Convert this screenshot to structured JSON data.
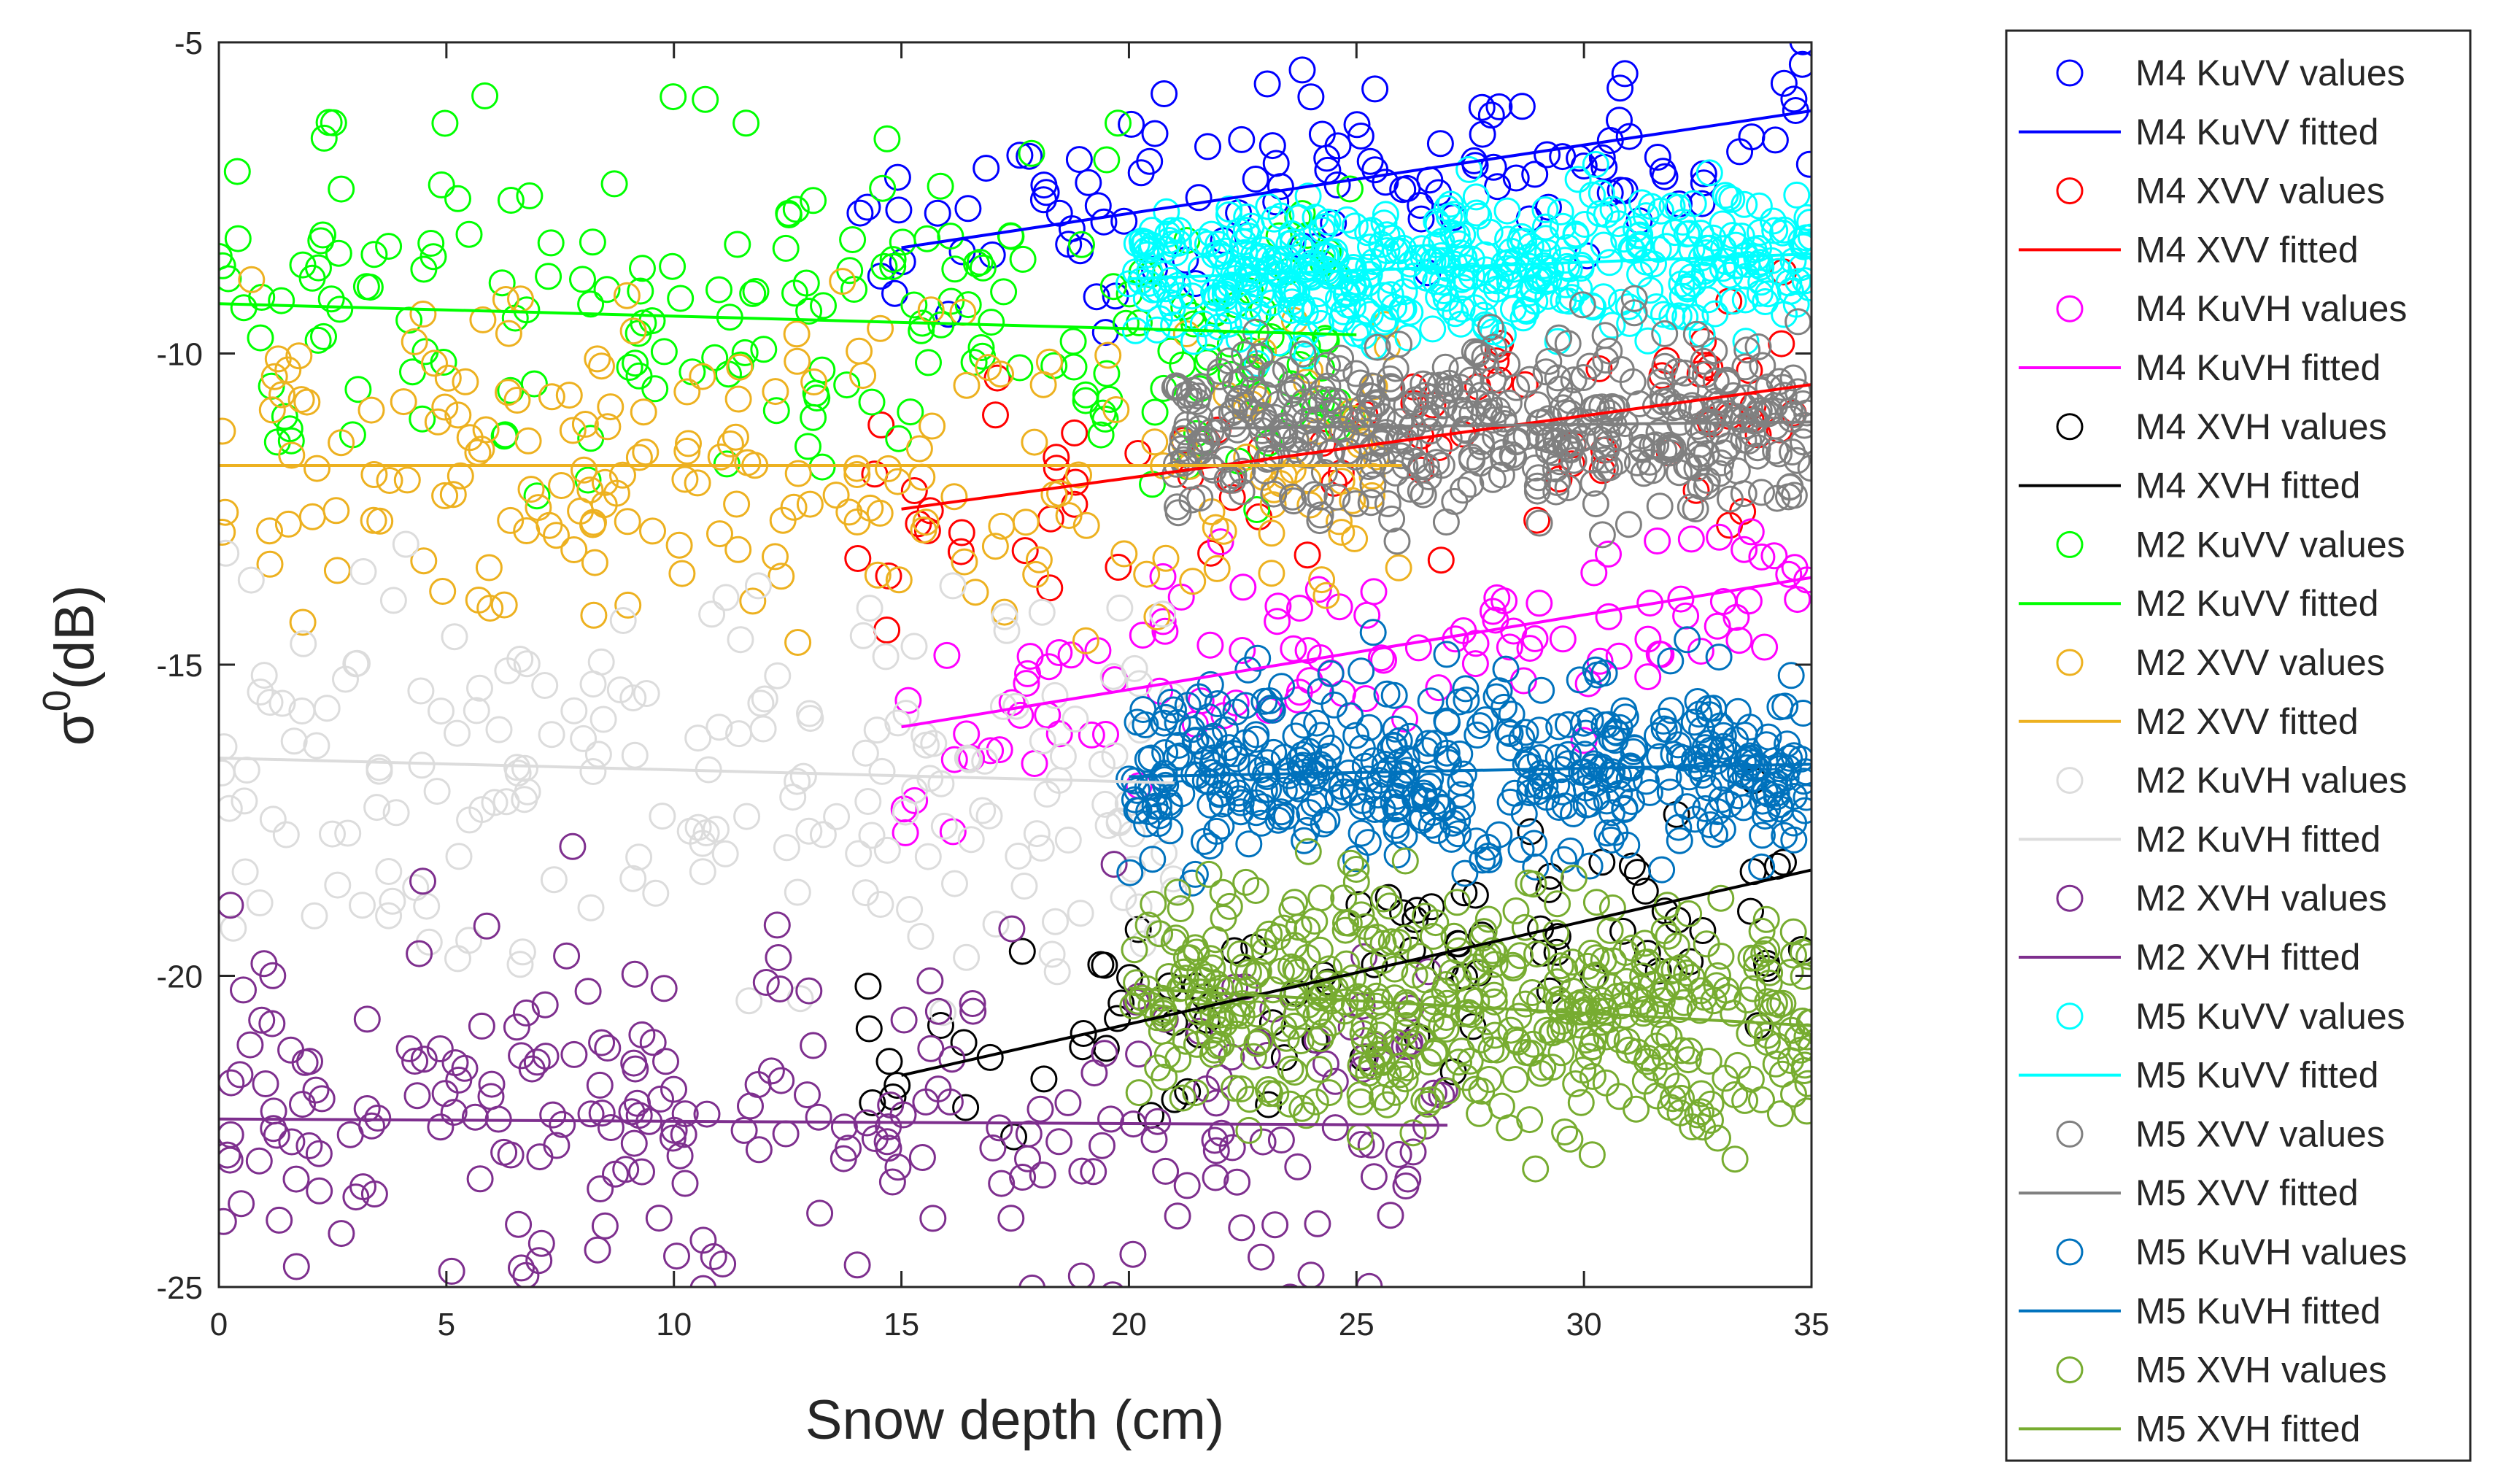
{
  "chart_data": {
    "type": "scatter",
    "title": "",
    "xlabel": "Snow depth (cm)",
    "ylabel_base": "σ",
    "ylabel_superscript": "0",
    "ylabel_unit": "(dB)",
    "xlim": [
      0,
      35
    ],
    "ylim": [
      -25,
      -5
    ],
    "xticks": [
      0,
      5,
      10,
      15,
      20,
      25,
      30,
      35
    ],
    "yticks": [
      -5,
      -10,
      -15,
      -20,
      -25
    ],
    "grid": false,
    "legend_position": "outside-right",
    "series": [
      {
        "name": "M4 KuVV",
        "color": "#0000ff",
        "x_range": [
          14,
          35
        ],
        "y_center": -7.4,
        "spread": 0.8,
        "count": 120,
        "fit": [
          [
            15,
            -8.3
          ],
          [
            35,
            -6.1
          ]
        ]
      },
      {
        "name": "M4 XVV",
        "color": "#ff0000",
        "x_range": [
          14,
          35
        ],
        "y_center": -11.5,
        "spread": 0.9,
        "count": 80,
        "fit": [
          [
            15,
            -12.5
          ],
          [
            35,
            -10.5
          ]
        ]
      },
      {
        "name": "M4 KuVH",
        "color": "#ff00ff",
        "x_range": [
          15,
          35
        ],
        "y_center": -15.0,
        "spread": 0.8,
        "count": 110,
        "fit": [
          [
            15,
            -16.0
          ],
          [
            35,
            -13.6
          ]
        ]
      },
      {
        "name": "M4 XVH",
        "color": "#000000",
        "x_range": [
          14,
          35
        ],
        "y_center": -20.5,
        "spread": 0.9,
        "count": 90,
        "fit": [
          [
            15,
            -21.6
          ],
          [
            35,
            -18.3
          ]
        ]
      },
      {
        "name": "M2 KuVV",
        "color": "#00ff00",
        "x_range": [
          0,
          25
        ],
        "y_center": -9.3,
        "spread": 1.4,
        "count": 220,
        "fit": [
          [
            0,
            -9.2
          ],
          [
            25,
            -9.7
          ]
        ]
      },
      {
        "name": "M2 XVV",
        "color": "#edb120",
        "x_range": [
          0,
          26
        ],
        "y_center": -11.8,
        "spread": 1.2,
        "count": 220,
        "fit": [
          [
            0,
            -11.8
          ],
          [
            26,
            -11.8
          ]
        ]
      },
      {
        "name": "M2 KuVH",
        "color": "#dcdcdc",
        "x_range": [
          0,
          21
        ],
        "y_center": -16.5,
        "spread": 1.8,
        "count": 200,
        "fit": [
          [
            0,
            -16.5
          ],
          [
            21,
            -16.9
          ]
        ]
      },
      {
        "name": "M2 XVH",
        "color": "#7e2f8e",
        "x_range": [
          0,
          27
        ],
        "y_center": -22.3,
        "spread": 1.5,
        "count": 260,
        "fit": [
          [
            0,
            -22.3
          ],
          [
            27,
            -22.4
          ]
        ]
      },
      {
        "name": "M5 KuVV",
        "color": "#00ffff",
        "x_range": [
          20,
          35
        ],
        "y_center": -8.6,
        "spread": 0.55,
        "count": 450,
        "fit": [
          [
            20,
            -8.8
          ],
          [
            35,
            -8.4
          ]
        ]
      },
      {
        "name": "M5 XVV",
        "color": "#808080",
        "x_range": [
          21,
          35
        ],
        "y_center": -11.2,
        "spread": 0.7,
        "count": 450,
        "fit": [
          [
            22,
            -11.2
          ],
          [
            35,
            -11.1
          ]
        ]
      },
      {
        "name": "M5 KuVH",
        "color": "#0072bd",
        "x_range": [
          20,
          35
        ],
        "y_center": -16.8,
        "spread": 0.75,
        "count": 450,
        "fit": [
          [
            20,
            -16.8
          ],
          [
            35,
            -16.6
          ]
        ]
      },
      {
        "name": "M5 XVH",
        "color": "#77ac30",
        "x_range": [
          20,
          35
        ],
        "y_center": -20.6,
        "spread": 0.95,
        "count": 480,
        "fit": [
          [
            20,
            -20.2
          ],
          [
            35,
            -20.8
          ]
        ]
      }
    ]
  },
  "legend": {
    "items": [
      {
        "label": "M4 KuVV values",
        "color": "#0000ff",
        "kind": "marker"
      },
      {
        "label": "M4 KuVV fitted",
        "color": "#0000ff",
        "kind": "line"
      },
      {
        "label": "M4 XVV values",
        "color": "#ff0000",
        "kind": "marker"
      },
      {
        "label": "M4 XVV fitted",
        "color": "#ff0000",
        "kind": "line"
      },
      {
        "label": "M4 KuVH values",
        "color": "#ff00ff",
        "kind": "marker"
      },
      {
        "label": "M4 KuVH fitted",
        "color": "#ff00ff",
        "kind": "line"
      },
      {
        "label": "M4 XVH values",
        "color": "#000000",
        "kind": "marker"
      },
      {
        "label": "M4 XVH fitted",
        "color": "#000000",
        "kind": "line"
      },
      {
        "label": "M2 KuVV values",
        "color": "#00ff00",
        "kind": "marker"
      },
      {
        "label": "M2 KuVV fitted",
        "color": "#00ff00",
        "kind": "line"
      },
      {
        "label": "M2 XVV values",
        "color": "#edb120",
        "kind": "marker"
      },
      {
        "label": "M2 XVV fitted",
        "color": "#edb120",
        "kind": "line"
      },
      {
        "label": "M2 KuVH values",
        "color": "#dcdcdc",
        "kind": "marker"
      },
      {
        "label": "M2 KuVH fitted",
        "color": "#dcdcdc",
        "kind": "line"
      },
      {
        "label": "M2 XVH values",
        "color": "#7e2f8e",
        "kind": "marker"
      },
      {
        "label": "M2 XVH fitted",
        "color": "#7e2f8e",
        "kind": "line"
      },
      {
        "label": "M5 KuVV values",
        "color": "#00ffff",
        "kind": "marker"
      },
      {
        "label": "M5 KuVV fitted",
        "color": "#00ffff",
        "kind": "line"
      },
      {
        "label": "M5 XVV values",
        "color": "#808080",
        "kind": "marker"
      },
      {
        "label": "M5 XVV fitted",
        "color": "#808080",
        "kind": "line"
      },
      {
        "label": "M5 KuVH values",
        "color": "#0072bd",
        "kind": "marker"
      },
      {
        "label": "M5 KuVH fitted",
        "color": "#0072bd",
        "kind": "line"
      },
      {
        "label": "M5 XVH values",
        "color": "#77ac30",
        "kind": "marker"
      },
      {
        "label": "M5 XVH fitted",
        "color": "#77ac30",
        "kind": "line"
      }
    ]
  }
}
